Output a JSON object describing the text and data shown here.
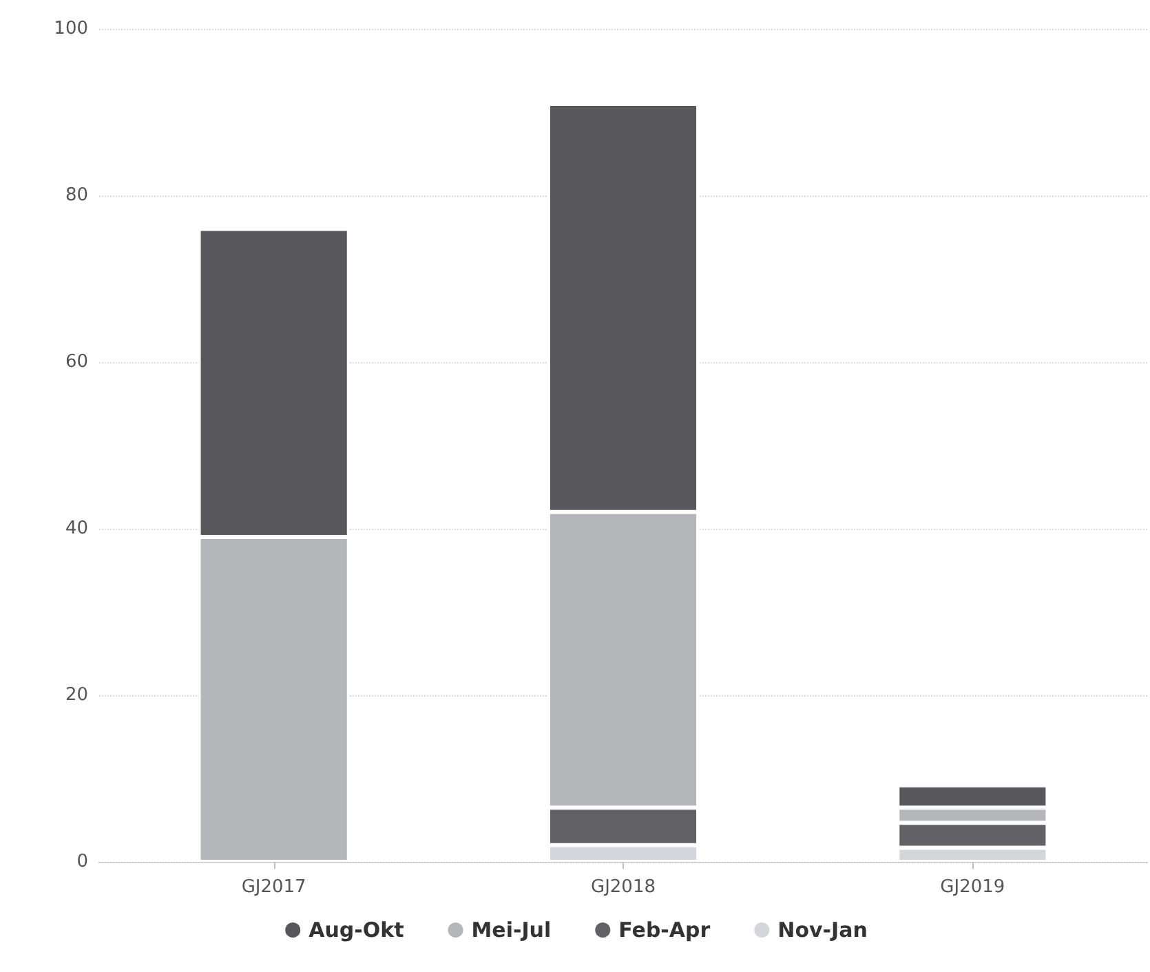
{
  "chart_data": {
    "type": "bar",
    "stacked": true,
    "categories": [
      "GJ2017",
      "GJ2018",
      "GJ2019"
    ],
    "series": [
      {
        "name": "Nov-Jan",
        "color": "#d3d6da",
        "values": [
          null,
          2,
          1.7
        ]
      },
      {
        "name": "Feb-Apr",
        "color": "#626266",
        "values": [
          null,
          4.5,
          3
        ]
      },
      {
        "name": "Mei-Jul",
        "color": "#b5b6ba",
        "values": [
          39,
          35.5,
          1.8
        ]
      },
      {
        "name": "Aug-Okt",
        "color": "#58585c",
        "values": [
          37,
          49,
          2.7
        ]
      }
    ],
    "ylim": [
      0,
      100
    ],
    "yticks": [
      0,
      20,
      40,
      60,
      80,
      100
    ],
    "grid": "y",
    "legend": "bottom"
  }
}
